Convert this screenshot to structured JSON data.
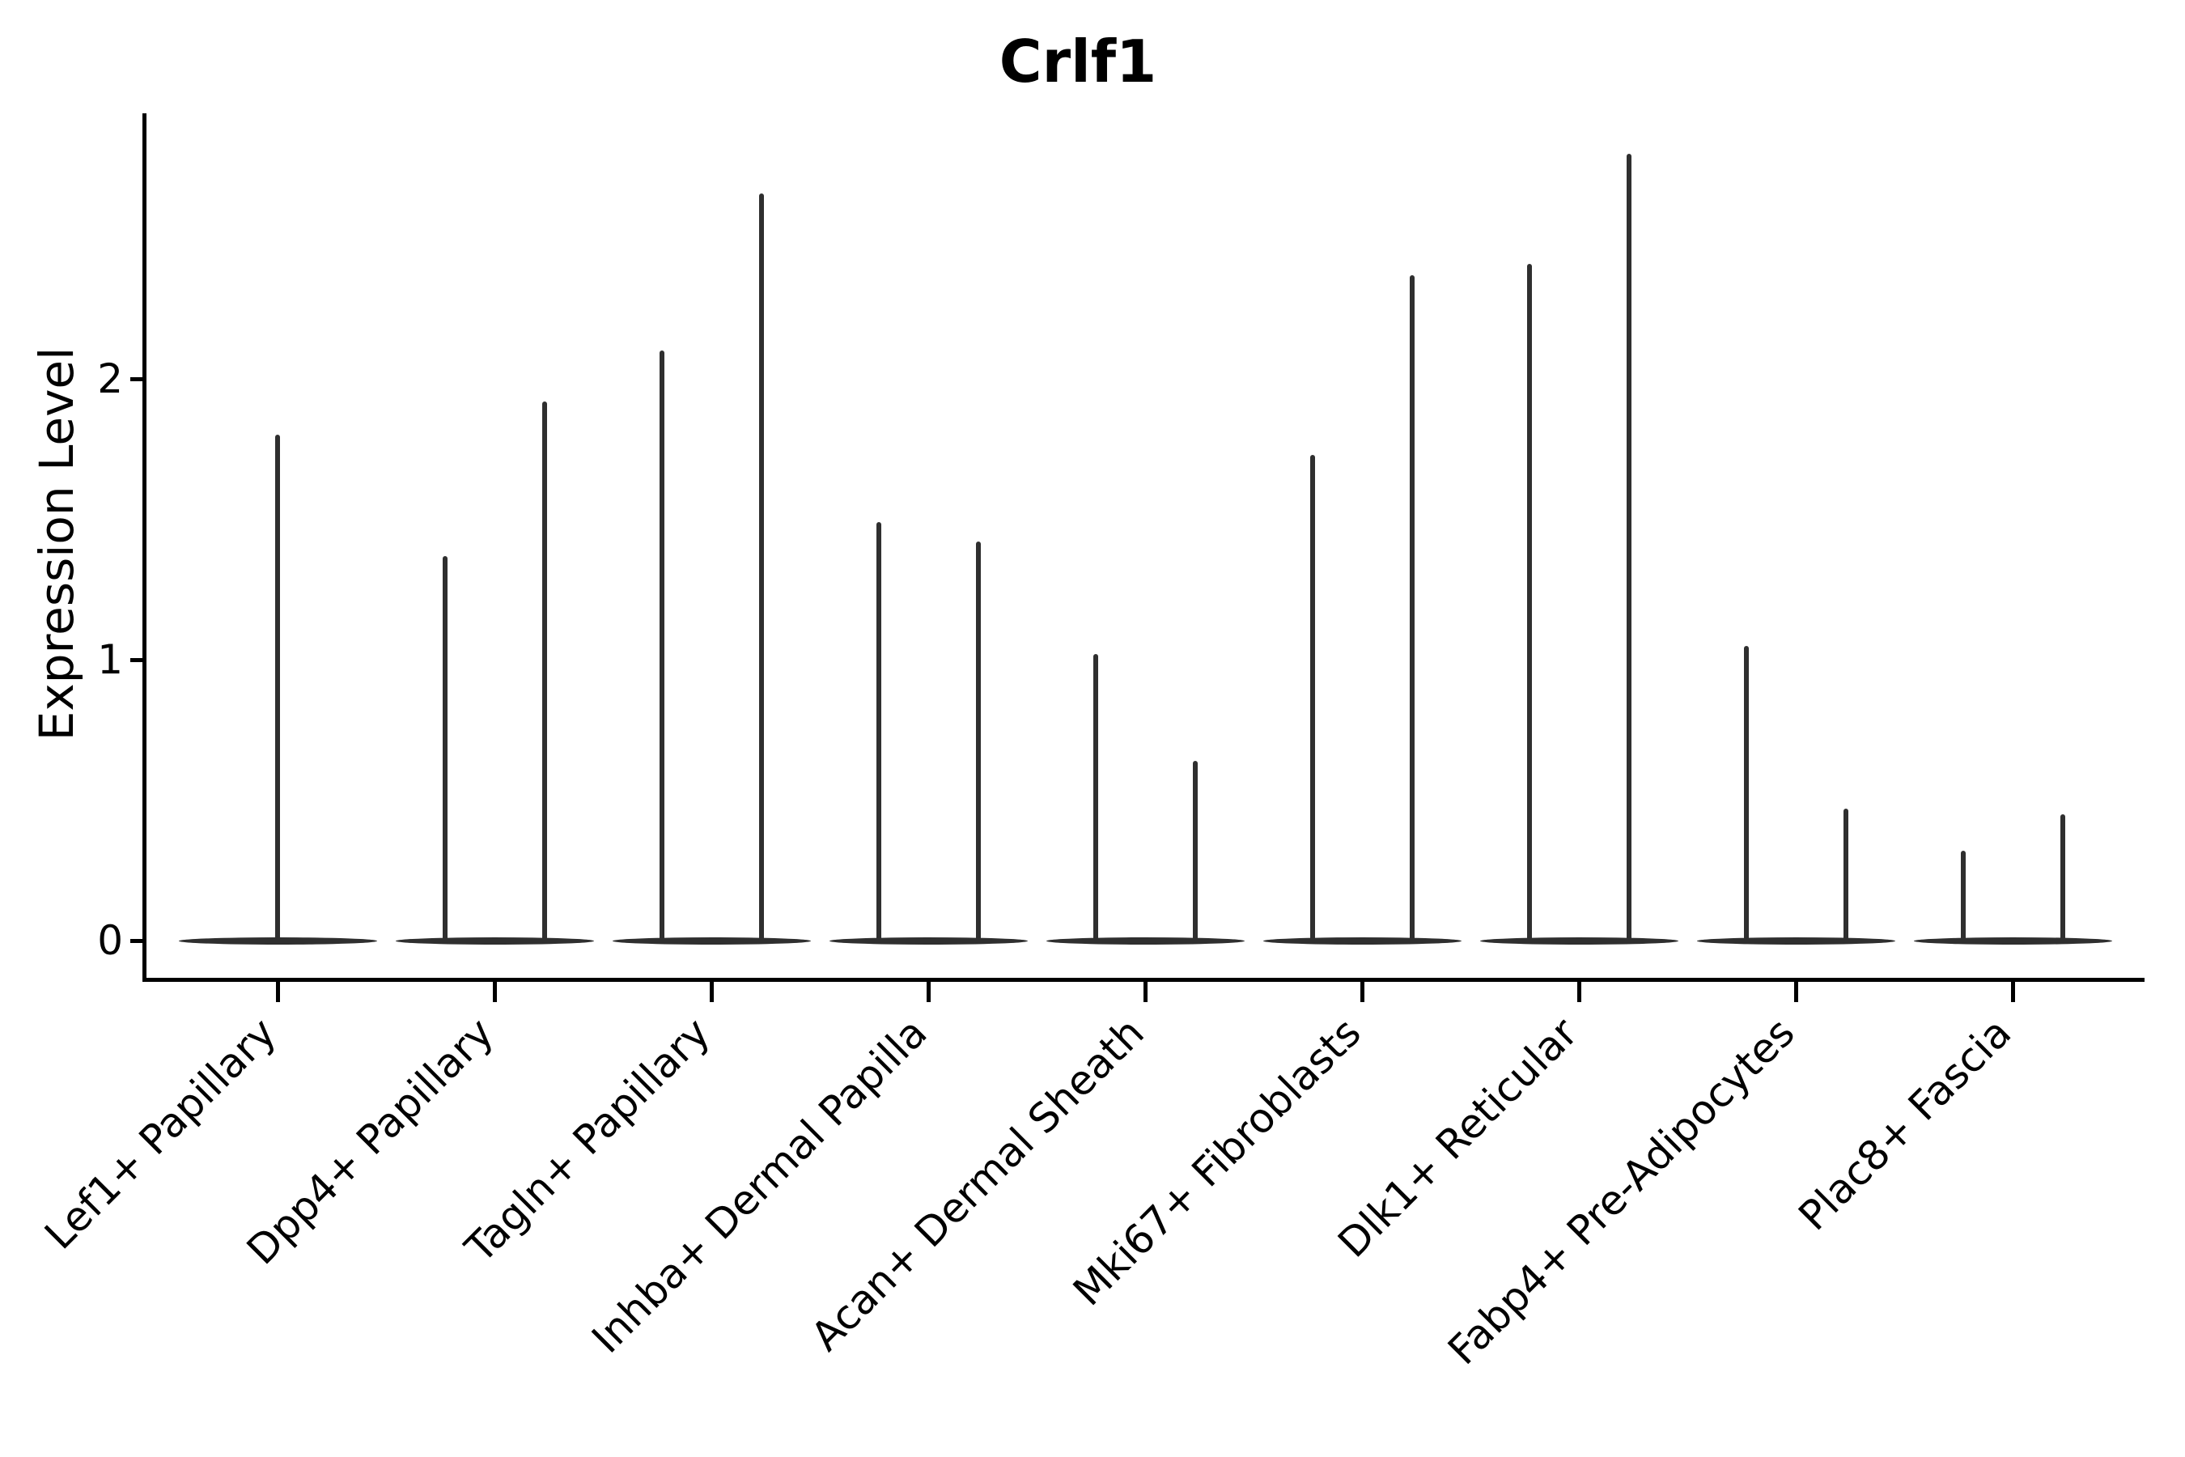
{
  "title": "Crlf1",
  "y_axis": {
    "label": "Expression Level",
    "tick_labels": [
      "0",
      "1",
      "2"
    ],
    "tick_values": [
      0,
      1,
      2
    ]
  },
  "x_axis": {
    "label": ""
  },
  "style": {
    "ink_color": "#000000",
    "violin_color": "#2f2f2f",
    "background": "#ffffff"
  },
  "chart_data": {
    "type": "violin",
    "title": "Crlf1",
    "xlabel": "",
    "ylabel": "Expression Level",
    "ylim": [
      0,
      2.95
    ],
    "yticks": [
      0,
      1,
      2
    ],
    "grid": false,
    "legend": false,
    "description": "Seurat-style violin plot; each violin collapses to a flat band at 0 with thin spikes reaching the maximum expression values",
    "categories": [
      "Lef1+ Papillary",
      "Dpp4+ Papillary",
      "Tagln+ Papillary",
      "Inhba+ Dermal Papilla",
      "Acan+ Dermal Sheath",
      "Mki67+ Fibroblasts",
      "Dlk1+ Reticular",
      "Fabp4+ Pre-Adipocytes",
      "Plac8+ Fascia"
    ],
    "violins": [
      {
        "label": "Lef1+ Papillary",
        "baseline_value": 0,
        "spike_maxima": [
          1.8
        ]
      },
      {
        "label": "Dpp4+ Papillary",
        "baseline_value": 0,
        "spike_maxima": [
          1.37,
          1.92
        ]
      },
      {
        "label": "Tagln+ Papillary",
        "baseline_value": 0,
        "spike_maxima": [
          2.1,
          2.66
        ]
      },
      {
        "label": "Inhba+ Dermal Papilla",
        "baseline_value": 0,
        "spike_maxima": [
          1.49,
          1.42
        ]
      },
      {
        "label": "Acan+ Dermal Sheath",
        "baseline_value": 0,
        "spike_maxima": [
          1.02,
          0.64
        ]
      },
      {
        "label": "Mki67+ Fibroblasts",
        "baseline_value": 0,
        "spike_maxima": [
          1.73,
          2.37
        ]
      },
      {
        "label": "Dlk1+ Reticular",
        "baseline_value": 0,
        "spike_maxima": [
          2.41,
          2.8
        ]
      },
      {
        "label": "Fabp4+ Pre-Adipocytes",
        "baseline_value": 0,
        "spike_maxima": [
          1.05,
          0.47
        ]
      },
      {
        "label": "Plac8+ Fascia",
        "baseline_value": 0,
        "spike_maxima": [
          0.32,
          0.45
        ]
      }
    ]
  }
}
